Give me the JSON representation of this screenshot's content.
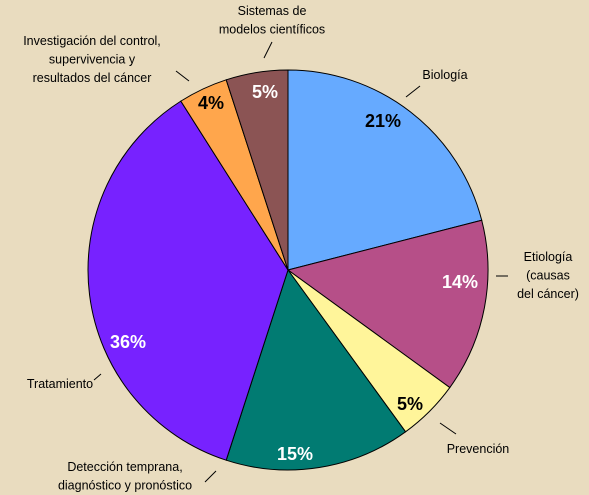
{
  "chart_data": {
    "type": "pie",
    "categories": [
      "Biología",
      "Etiología\n(causas\ndel cáncer)",
      "Prevención",
      "Detección temprana,\ndiagnóstico y pronóstico",
      "Tratamiento",
      "Investigación del control,\nsupervivencia y\nresultados del cáncer",
      "Sistemas de\nmodelos científicos"
    ],
    "values": [
      21,
      14,
      5,
      15,
      36,
      4,
      5
    ],
    "value_labels": [
      "21%",
      "14%",
      "5%",
      "15%",
      "36%",
      "4%",
      "5%"
    ],
    "colors": [
      "#66aaff",
      "#b64f88",
      "#fff59a",
      "#017b72",
      "#7722ff",
      "#ffa64c",
      "#8b5454"
    ],
    "label_colors": [
      "#000000",
      "#ffffff",
      "#000000",
      "#ffffff",
      "#ffffff",
      "#000000",
      "#ffffff"
    ]
  }
}
